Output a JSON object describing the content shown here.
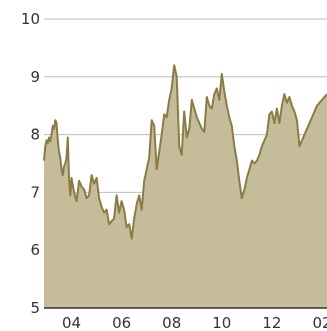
{
  "chart_data": {
    "type": "area",
    "title": "",
    "xlabel": "",
    "ylabel": "",
    "x_ticks": [
      "04",
      "06",
      "08",
      "10",
      "12",
      "02"
    ],
    "x_tick_values": [
      2004,
      2006,
      2008,
      2010,
      2012,
      2014
    ],
    "y_ticks": [
      "10",
      "9",
      "8",
      "7",
      "6",
      "5"
    ],
    "y_tick_values": [
      10,
      9,
      8,
      7,
      6,
      5
    ],
    "xlim": [
      2002.9,
      2014.2
    ],
    "ylim": [
      5,
      10
    ],
    "grid": true,
    "colors": {
      "fill": "#c5bd9a",
      "line": "#8c7b45",
      "grid": "#bdbdbd",
      "axis": "#333333"
    },
    "series": [
      {
        "x": [
          2002.9,
          2002.95,
          2003.0,
          2003.05,
          2003.1,
          2003.15,
          2003.2,
          2003.25,
          2003.3,
          2003.35,
          2003.4,
          2003.45,
          2003.5,
          2003.55,
          2003.6,
          2003.65,
          2003.7,
          2003.75,
          2003.8,
          2003.85,
          2003.9,
          2003.95,
          2004.0,
          2004.1,
          2004.2,
          2004.3,
          2004.4,
          2004.5,
          2004.6,
          2004.7,
          2004.8,
          2004.9,
          2005.0,
          2005.1,
          2005.2,
          2005.3,
          2005.4,
          2005.5,
          2005.6,
          2005.7,
          2005.8,
          2005.9,
          2006.0,
          2006.1,
          2006.2,
          2006.3,
          2006.4,
          2006.5,
          2006.6,
          2006.7,
          2006.8,
          2006.9,
          2007.0,
          2007.1,
          2007.2,
          2007.3,
          2007.4,
          2007.5,
          2007.6,
          2007.7,
          2007.8,
          2007.9,
          2008.0,
          2008.1,
          2008.2,
          2008.3,
          2008.4,
          2008.5,
          2008.6,
          2008.7,
          2008.8,
          2008.9,
          2009.0,
          2009.1,
          2009.2,
          2009.3,
          2009.4,
          2009.5,
          2009.6,
          2009.7,
          2009.8,
          2009.9,
          2010.0,
          2010.1,
          2010.2,
          2010.3,
          2010.4,
          2010.5,
          2010.6,
          2010.7,
          2010.8,
          2010.9,
          2011.0,
          2011.1,
          2011.2,
          2011.3,
          2011.4,
          2011.5,
          2011.6,
          2011.7,
          2011.8,
          2011.9,
          2012.0,
          2012.1,
          2012.2,
          2012.3,
          2012.4,
          2012.5,
          2012.6,
          2012.7,
          2012.8,
          2012.9,
          2013.0,
          2013.1,
          2013.2,
          2013.3,
          2013.4,
          2013.5,
          2013.6,
          2013.7,
          2013.8,
          2013.9,
          2014.0,
          2014.1,
          2014.2
        ],
        "y": [
          7.55,
          7.8,
          7.9,
          7.85,
          7.95,
          7.88,
          8.0,
          8.15,
          8.1,
          8.25,
          8.2,
          7.9,
          7.7,
          7.6,
          7.4,
          7.3,
          7.45,
          7.5,
          7.6,
          7.95,
          7.25,
          6.95,
          7.25,
          7.0,
          6.85,
          7.2,
          7.1,
          7.05,
          6.9,
          6.95,
          7.3,
          7.15,
          7.25,
          6.9,
          6.75,
          6.65,
          6.7,
          6.45,
          6.5,
          6.55,
          6.95,
          6.65,
          6.85,
          6.7,
          6.4,
          6.45,
          6.2,
          6.55,
          6.8,
          6.95,
          6.7,
          7.2,
          7.4,
          7.6,
          8.25,
          8.15,
          7.4,
          7.7,
          8.0,
          8.35,
          8.3,
          8.6,
          8.8,
          9.2,
          9.0,
          7.8,
          7.65,
          8.4,
          7.95,
          8.1,
          8.6,
          8.45,
          8.3,
          8.2,
          8.1,
          8.05,
          8.65,
          8.5,
          8.45,
          8.7,
          8.8,
          8.6,
          9.05,
          8.75,
          8.5,
          8.3,
          8.15,
          7.8,
          7.55,
          7.2,
          6.9,
          7.05,
          7.25,
          7.4,
          7.55,
          7.5,
          7.55,
          7.65,
          7.8,
          7.9,
          8.0,
          8.35,
          8.4,
          8.2,
          8.45,
          8.2,
          8.5,
          8.7,
          8.55,
          8.65,
          8.5,
          8.4,
          8.25,
          7.8,
          7.9,
          8.0,
          8.1,
          8.2,
          8.3,
          8.4,
          8.5,
          8.55,
          8.6,
          8.65,
          8.7
        ]
      }
    ]
  }
}
